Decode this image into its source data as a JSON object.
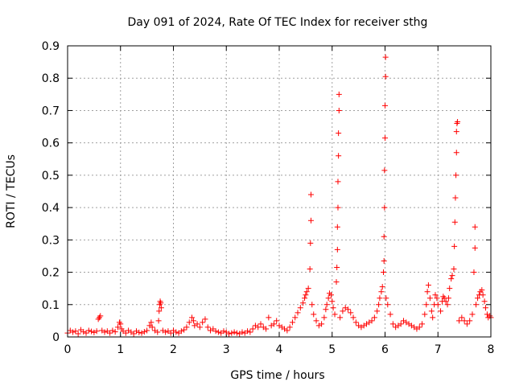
{
  "chart_data": {
    "type": "scatter",
    "title": "Day 091 of 2024, Rate Of TEC Index for receiver sthg",
    "xlabel": "GPS time / hours",
    "ylabel": "ROTI / TECUs",
    "xlim": [
      0,
      8
    ],
    "ylim": [
      0,
      0.9
    ],
    "xticks": [
      "0",
      "1",
      "2",
      "3",
      "4",
      "5",
      "6",
      "7",
      "8"
    ],
    "yticks": [
      "0",
      "0.1",
      "0.2",
      "0.3",
      "0.4",
      "0.5",
      "0.6",
      "0.7",
      "0.8",
      "0.9"
    ],
    "grid": true,
    "marker": "+",
    "color": "#ff0000",
    "series": [
      {
        "points": [
          [
            0.0,
            0.012
          ],
          [
            0.05,
            0.02
          ],
          [
            0.1,
            0.015
          ],
          [
            0.15,
            0.018
          ],
          [
            0.2,
            0.01
          ],
          [
            0.25,
            0.022
          ],
          [
            0.3,
            0.016
          ],
          [
            0.35,
            0.012
          ],
          [
            0.4,
            0.02
          ],
          [
            0.45,
            0.017
          ],
          [
            0.5,
            0.014
          ],
          [
            0.55,
            0.018
          ],
          [
            0.58,
            0.055
          ],
          [
            0.6,
            0.06
          ],
          [
            0.62,
            0.065
          ],
          [
            0.65,
            0.02
          ],
          [
            0.7,
            0.015
          ],
          [
            0.75,
            0.018
          ],
          [
            0.8,
            0.012
          ],
          [
            0.85,
            0.02
          ],
          [
            0.9,
            0.016
          ],
          [
            0.95,
            0.03
          ],
          [
            0.98,
            0.045
          ],
          [
            1.0,
            0.04
          ],
          [
            1.02,
            0.025
          ],
          [
            1.05,
            0.018
          ],
          [
            1.1,
            0.012
          ],
          [
            1.15,
            0.02
          ],
          [
            1.2,
            0.015
          ],
          [
            1.25,
            0.01
          ],
          [
            1.3,
            0.018
          ],
          [
            1.35,
            0.014
          ],
          [
            1.4,
            0.012
          ],
          [
            1.45,
            0.016
          ],
          [
            1.5,
            0.02
          ],
          [
            1.55,
            0.035
          ],
          [
            1.58,
            0.045
          ],
          [
            1.6,
            0.03
          ],
          [
            1.65,
            0.02
          ],
          [
            1.7,
            0.015
          ],
          [
            1.72,
            0.05
          ],
          [
            1.73,
            0.08
          ],
          [
            1.74,
            0.1
          ],
          [
            1.75,
            0.11
          ],
          [
            1.76,
            0.105
          ],
          [
            1.77,
            0.09
          ],
          [
            1.8,
            0.02
          ],
          [
            1.85,
            0.015
          ],
          [
            1.9,
            0.018
          ],
          [
            1.95,
            0.012
          ],
          [
            2.0,
            0.02
          ],
          [
            2.05,
            0.015
          ],
          [
            2.1,
            0.012
          ],
          [
            2.15,
            0.018
          ],
          [
            2.2,
            0.022
          ],
          [
            2.25,
            0.03
          ],
          [
            2.3,
            0.045
          ],
          [
            2.35,
            0.06
          ],
          [
            2.38,
            0.05
          ],
          [
            2.4,
            0.035
          ],
          [
            2.45,
            0.04
          ],
          [
            2.5,
            0.03
          ],
          [
            2.55,
            0.045
          ],
          [
            2.6,
            0.055
          ],
          [
            2.65,
            0.03
          ],
          [
            2.7,
            0.02
          ],
          [
            2.75,
            0.025
          ],
          [
            2.8,
            0.018
          ],
          [
            2.85,
            0.015
          ],
          [
            2.9,
            0.012
          ],
          [
            2.95,
            0.018
          ],
          [
            3.0,
            0.015
          ],
          [
            3.05,
            0.01
          ],
          [
            3.1,
            0.012
          ],
          [
            3.15,
            0.015
          ],
          [
            3.2,
            0.012
          ],
          [
            3.25,
            0.01
          ],
          [
            3.3,
            0.015
          ],
          [
            3.35,
            0.012
          ],
          [
            3.4,
            0.018
          ],
          [
            3.45,
            0.015
          ],
          [
            3.5,
            0.025
          ],
          [
            3.55,
            0.035
          ],
          [
            3.6,
            0.03
          ],
          [
            3.65,
            0.04
          ],
          [
            3.7,
            0.03
          ],
          [
            3.75,
            0.025
          ],
          [
            3.8,
            0.06
          ],
          [
            3.85,
            0.035
          ],
          [
            3.9,
            0.04
          ],
          [
            3.95,
            0.05
          ],
          [
            4.0,
            0.035
          ],
          [
            4.05,
            0.03
          ],
          [
            4.1,
            0.025
          ],
          [
            4.15,
            0.02
          ],
          [
            4.2,
            0.03
          ],
          [
            4.25,
            0.045
          ],
          [
            4.3,
            0.06
          ],
          [
            4.35,
            0.075
          ],
          [
            4.4,
            0.09
          ],
          [
            4.45,
            0.105
          ],
          [
            4.48,
            0.12
          ],
          [
            4.5,
            0.13
          ],
          [
            4.52,
            0.14
          ],
          [
            4.55,
            0.15
          ],
          [
            4.58,
            0.21
          ],
          [
            4.59,
            0.29
          ],
          [
            4.6,
            0.36
          ],
          [
            4.6,
            0.44
          ],
          [
            4.62,
            0.1
          ],
          [
            4.65,
            0.07
          ],
          [
            4.7,
            0.05
          ],
          [
            4.75,
            0.035
          ],
          [
            4.8,
            0.04
          ],
          [
            4.85,
            0.06
          ],
          [
            4.88,
            0.085
          ],
          [
            4.9,
            0.1
          ],
          [
            4.93,
            0.12
          ],
          [
            4.95,
            0.135
          ],
          [
            4.98,
            0.13
          ],
          [
            5.0,
            0.11
          ],
          [
            5.02,
            0.09
          ],
          [
            5.05,
            0.07
          ],
          [
            5.08,
            0.17
          ],
          [
            5.09,
            0.215
          ],
          [
            5.1,
            0.27
          ],
          [
            5.1,
            0.34
          ],
          [
            5.11,
            0.4
          ],
          [
            5.11,
            0.48
          ],
          [
            5.12,
            0.56
          ],
          [
            5.12,
            0.63
          ],
          [
            5.13,
            0.7
          ],
          [
            5.13,
            0.75
          ],
          [
            5.15,
            0.06
          ],
          [
            5.2,
            0.08
          ],
          [
            5.25,
            0.09
          ],
          [
            5.3,
            0.085
          ],
          [
            5.35,
            0.075
          ],
          [
            5.4,
            0.06
          ],
          [
            5.45,
            0.045
          ],
          [
            5.5,
            0.035
          ],
          [
            5.55,
            0.03
          ],
          [
            5.6,
            0.035
          ],
          [
            5.65,
            0.04
          ],
          [
            5.7,
            0.045
          ],
          [
            5.75,
            0.05
          ],
          [
            5.8,
            0.06
          ],
          [
            5.85,
            0.08
          ],
          [
            5.88,
            0.1
          ],
          [
            5.9,
            0.12
          ],
          [
            5.93,
            0.14
          ],
          [
            5.95,
            0.155
          ],
          [
            5.97,
            0.2
          ],
          [
            5.98,
            0.235
          ],
          [
            5.98,
            0.31
          ],
          [
            5.99,
            0.4
          ],
          [
            5.99,
            0.515
          ],
          [
            6.0,
            0.615
          ],
          [
            6.0,
            0.715
          ],
          [
            6.01,
            0.805
          ],
          [
            6.01,
            0.865
          ],
          [
            6.02,
            0.12
          ],
          [
            6.05,
            0.1
          ],
          [
            6.1,
            0.07
          ],
          [
            6.15,
            0.04
          ],
          [
            6.2,
            0.03
          ],
          [
            6.25,
            0.035
          ],
          [
            6.3,
            0.04
          ],
          [
            6.35,
            0.05
          ],
          [
            6.4,
            0.045
          ],
          [
            6.45,
            0.04
          ],
          [
            6.5,
            0.035
          ],
          [
            6.55,
            0.03
          ],
          [
            6.6,
            0.025
          ],
          [
            6.65,
            0.03
          ],
          [
            6.7,
            0.04
          ],
          [
            6.75,
            0.07
          ],
          [
            6.78,
            0.1
          ],
          [
            6.8,
            0.14
          ],
          [
            6.82,
            0.16
          ],
          [
            6.85,
            0.12
          ],
          [
            6.88,
            0.08
          ],
          [
            6.9,
            0.06
          ],
          [
            6.93,
            0.1
          ],
          [
            6.95,
            0.13
          ],
          [
            6.98,
            0.12
          ],
          [
            7.0,
            0.1
          ],
          [
            7.05,
            0.08
          ],
          [
            7.08,
            0.11
          ],
          [
            7.1,
            0.125
          ],
          [
            7.12,
            0.12
          ],
          [
            7.15,
            0.11
          ],
          [
            7.18,
            0.1
          ],
          [
            7.2,
            0.12
          ],
          [
            7.22,
            0.15
          ],
          [
            7.25,
            0.18
          ],
          [
            7.27,
            0.19
          ],
          [
            7.3,
            0.21
          ],
          [
            7.31,
            0.28
          ],
          [
            7.32,
            0.355
          ],
          [
            7.33,
            0.43
          ],
          [
            7.34,
            0.5
          ],
          [
            7.35,
            0.57
          ],
          [
            7.35,
            0.635
          ],
          [
            7.36,
            0.66
          ],
          [
            7.37,
            0.665
          ],
          [
            7.4,
            0.05
          ],
          [
            7.45,
            0.06
          ],
          [
            7.5,
            0.05
          ],
          [
            7.55,
            0.04
          ],
          [
            7.6,
            0.05
          ],
          [
            7.65,
            0.07
          ],
          [
            7.68,
            0.2
          ],
          [
            7.7,
            0.275
          ],
          [
            7.7,
            0.34
          ],
          [
            7.72,
            0.1
          ],
          [
            7.75,
            0.12
          ],
          [
            7.78,
            0.13
          ],
          [
            7.8,
            0.14
          ],
          [
            7.83,
            0.145
          ],
          [
            7.85,
            0.13
          ],
          [
            7.88,
            0.11
          ],
          [
            7.9,
            0.09
          ],
          [
            7.93,
            0.07
          ],
          [
            7.95,
            0.06
          ],
          [
            7.98,
            0.065
          ],
          [
            8.0,
            0.06
          ]
        ]
      }
    ]
  }
}
